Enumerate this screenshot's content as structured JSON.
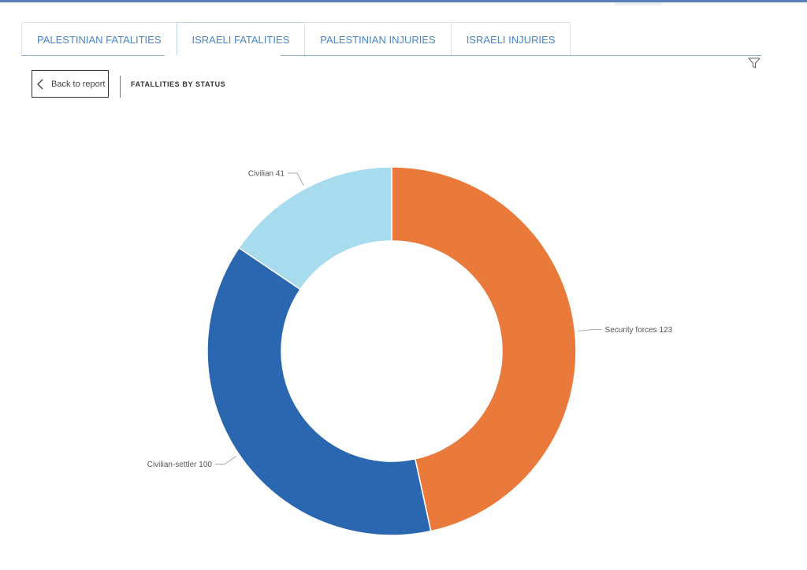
{
  "tabs": [
    {
      "label": "PALESTINIAN FATALITIES",
      "active": false
    },
    {
      "label": "ISRAELI FATALITIES",
      "active": true
    },
    {
      "label": "PALESTINIAN INJURIES",
      "active": false
    },
    {
      "label": "ISRAELI INJURIES",
      "active": false
    }
  ],
  "toolbar": {
    "back_label": "Back to report",
    "filter_icon": "filter-icon",
    "back_icon": "chevron-left-icon"
  },
  "page": {
    "title": "FATALLITIES BY STATUS"
  },
  "chart_data": {
    "type": "pie",
    "donut": true,
    "title": "",
    "categories": [
      "Security forces",
      "Civilian-settler",
      "Civilian"
    ],
    "values": [
      123,
      100,
      41
    ],
    "labels": [
      "Security forces 123",
      "Civilian-settler 100",
      "Civilian 41"
    ],
    "colors": [
      "#ea7a3b",
      "#2b67b1",
      "#a7dbee"
    ],
    "legend": "none"
  }
}
